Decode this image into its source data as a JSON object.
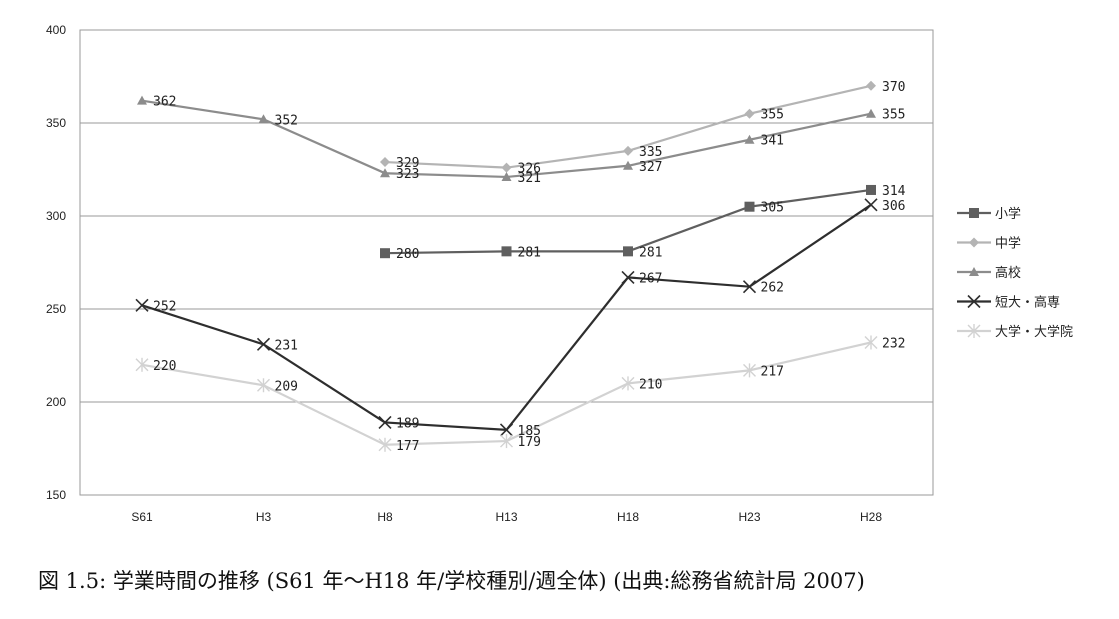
{
  "caption": "図 1.5: 学業時間の推移 (S61 年〜H18 年/学校種別/週全体) (出典:総務省統計局 2007)",
  "chart_data": {
    "type": "line",
    "categories": [
      "S61",
      "H3",
      "H8",
      "H13",
      "H18",
      "H23",
      "H28"
    ],
    "ylim": [
      150,
      400
    ],
    "yticks": [
      150,
      200,
      250,
      300,
      350,
      400
    ],
    "grid": true,
    "legend_position": "right",
    "series": [
      {
        "name": "小学",
        "values": [
          null,
          null,
          280,
          281,
          281,
          305,
          314
        ],
        "color": "#5f5f5f",
        "marker": "square"
      },
      {
        "name": "中学",
        "values": [
          null,
          null,
          329,
          326,
          335,
          355,
          370
        ],
        "color": "#b4b4b4",
        "marker": "diamond"
      },
      {
        "name": "高校",
        "values": [
          362,
          352,
          323,
          321,
          327,
          341,
          355
        ],
        "color": "#8c8c8c",
        "marker": "triangle"
      },
      {
        "name": "短大・高専",
        "values": [
          252,
          231,
          189,
          185,
          267,
          262,
          306
        ],
        "color": "#2e2e2e",
        "marker": "x"
      },
      {
        "name": "大学・大学院",
        "values": [
          220,
          209,
          177,
          179,
          210,
          217,
          232
        ],
        "color": "#d2d2d2",
        "marker": "star"
      }
    ]
  }
}
